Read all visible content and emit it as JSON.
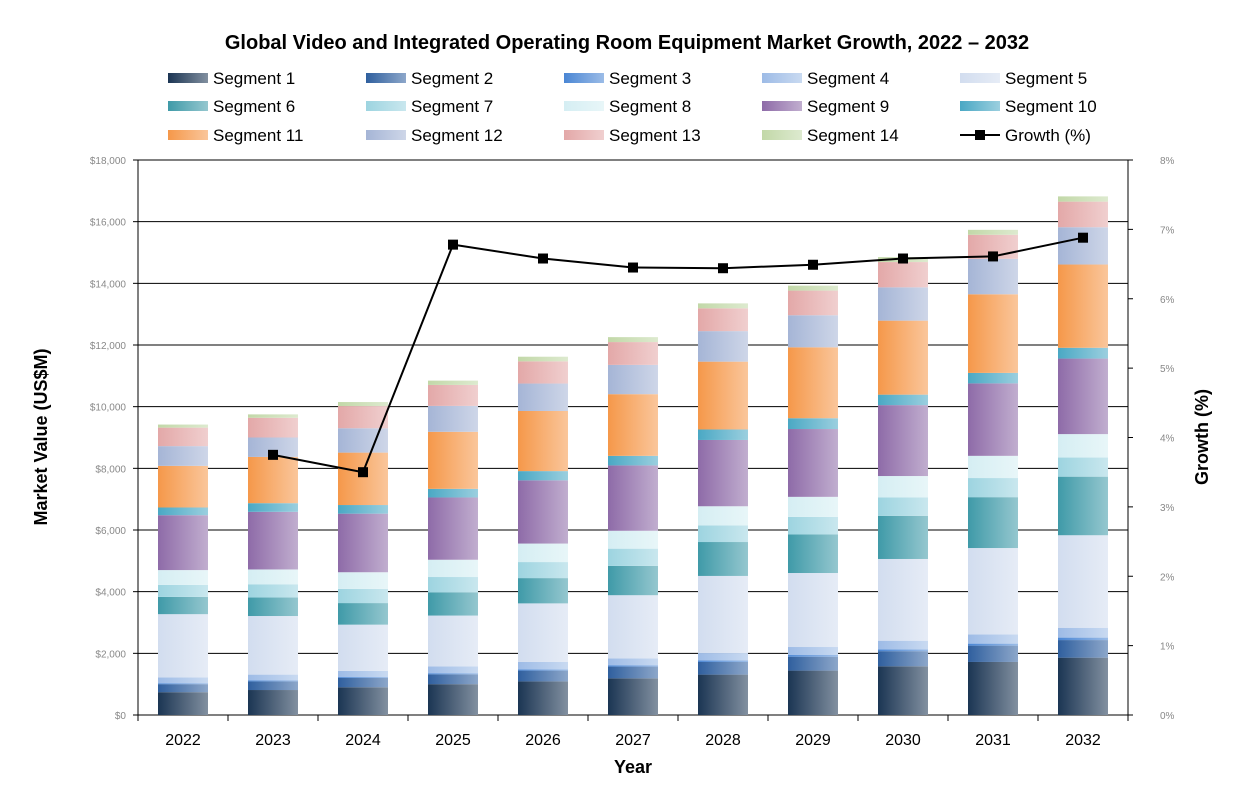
{
  "chart_data": {
    "type": "bar",
    "stacked": true,
    "title": "Global Video and Integrated Operating Room Equipment Market Growth, 2022 – 2032",
    "xlabel": "Year",
    "ylabel": "Market Value (US$M)",
    "y2label": "Growth (%)",
    "categories": [
      "2022",
      "2023",
      "2024",
      "2025",
      "2026",
      "2027",
      "2028",
      "2029",
      "2030",
      "2031",
      "2032"
    ],
    "ylim": [
      0,
      18000
    ],
    "y2lim": [
      0,
      8
    ],
    "yticks": [
      "$0",
      "$2,000",
      "$4,000",
      "$6,000",
      "$8,000",
      "$10,000",
      "$12,000",
      "$14,000",
      "$16,000",
      "$18,000"
    ],
    "y2ticks": [
      "0%",
      "1%",
      "2%",
      "3%",
      "4%",
      "5%",
      "6%",
      "7%",
      "8%"
    ],
    "grid": true,
    "legend": "top",
    "series": [
      {
        "name": "Segment 1",
        "color": "#1b3553",
        "values": [
          740,
          810,
          900,
          1000,
          1090,
          1190,
          1310,
          1440,
          1580,
          1720,
          1860
        ]
      },
      {
        "name": "Segment 2",
        "color": "#2f5f9e",
        "values": [
          260,
          280,
          300,
          320,
          350,
          380,
          410,
          450,
          490,
          530,
          570
        ]
      },
      {
        "name": "Segment 3",
        "color": "#4a86d4",
        "values": [
          30,
          30,
          30,
          35,
          40,
          45,
          50,
          55,
          60,
          65,
          80
        ]
      },
      {
        "name": "Segment 4",
        "color": "#9dbbe6",
        "values": [
          190,
          190,
          200,
          220,
          240,
          220,
          240,
          260,
          280,
          300,
          320
        ]
      },
      {
        "name": "Segment 5",
        "color": "#d2ddef",
        "values": [
          2050,
          1900,
          1500,
          1650,
          1900,
          2050,
          2500,
          2400,
          2650,
          2800,
          3000
        ]
      },
      {
        "name": "Segment 6",
        "color": "#3f9aa8",
        "values": [
          560,
          600,
          700,
          750,
          820,
          950,
          1100,
          1250,
          1400,
          1650,
          1900
        ]
      },
      {
        "name": "Segment 7",
        "color": "#9dd4e0",
        "values": [
          390,
          430,
          460,
          500,
          520,
          560,
          540,
          570,
          600,
          620,
          620
        ]
      },
      {
        "name": "Segment 8",
        "color": "#d5eef3",
        "values": [
          480,
          480,
          540,
          560,
          600,
          580,
          620,
          650,
          690,
          720,
          760
        ]
      },
      {
        "name": "Segment 9",
        "color": "#8e6ba8",
        "values": [
          1780,
          1870,
          1900,
          2020,
          2050,
          2120,
          2150,
          2200,
          2300,
          2350,
          2450
        ]
      },
      {
        "name": "Segment 10",
        "color": "#4aa8c4",
        "values": [
          250,
          280,
          280,
          280,
          300,
          310,
          340,
          350,
          340,
          340,
          350
        ]
      },
      {
        "name": "Segment 11",
        "color": "#f5984a",
        "values": [
          1350,
          1500,
          1700,
          1850,
          1950,
          2000,
          2200,
          2300,
          2400,
          2550,
          2700
        ]
      },
      {
        "name": "Segment 12",
        "color": "#a5b5d6",
        "values": [
          640,
          630,
          790,
          840,
          890,
          950,
          990,
          1040,
          1080,
          1150,
          1210
        ]
      },
      {
        "name": "Segment 13",
        "color": "#e3a8a8",
        "values": [
          600,
          640,
          720,
          680,
          720,
          740,
          740,
          800,
          820,
          780,
          830
        ]
      },
      {
        "name": "Segment 14",
        "color": "#c2d8a8",
        "values": [
          100,
          110,
          130,
          140,
          150,
          160,
          160,
          160,
          160,
          160,
          170
        ]
      }
    ],
    "line_series": {
      "name": "Growth (%)",
      "color": "#000000",
      "axis": "right",
      "values": [
        null,
        3.75,
        3.5,
        6.78,
        6.58,
        6.45,
        6.44,
        6.49,
        6.58,
        6.61,
        6.88
      ]
    }
  }
}
